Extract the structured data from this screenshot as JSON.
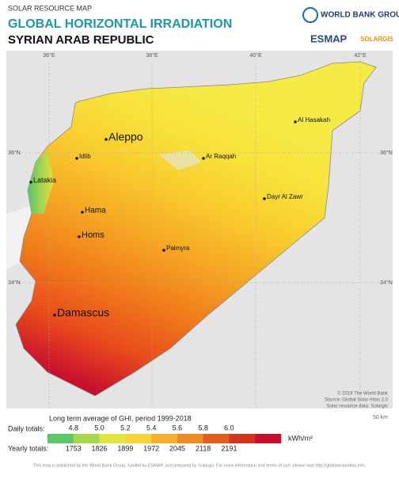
{
  "header": {
    "subtitle": "SOLAR RESOURCE MAP",
    "title": "GLOBAL HORIZONTAL IRRADIATION",
    "country": "SYRIAN ARAB REPUBLIC"
  },
  "logos": {
    "world_bank": "WORLD BANK GROUP",
    "esmap": "ESMAP",
    "solargis": "SOLARGIS"
  },
  "map": {
    "longitudes": [
      "36°E",
      "38°E",
      "40°E",
      "42°E"
    ],
    "latitudes": [
      "36°N",
      "34°N"
    ],
    "cities": [
      "Aleppo",
      "Idlib",
      "Latakia",
      "Hama",
      "Homs",
      "Palmyra",
      "Damascus",
      "Ar Raqqah",
      "Dayr Al Zawr",
      "Al Hasakah"
    ],
    "credits": [
      "© 2019 The World Bank",
      "Source: Global Solar Atlas 2.0",
      "Solar resource data: Solargis"
    ],
    "scale": "50 km"
  },
  "legend": {
    "title": "Long term average of GHI, period 1999-2018",
    "daily_label": "Daily totals:",
    "daily": [
      "4.8",
      "5.0",
      "5.2",
      "5.4",
      "5.6",
      "5.8",
      "6.0"
    ],
    "yearly_label": "Yearly totals:",
    "yearly": [
      "1753",
      "1826",
      "1899",
      "1972",
      "2045",
      "2118",
      "2191"
    ],
    "unit": "kWh/m²"
  },
  "footer": "This map is published by the World Bank Group, funded by ESMAP, and prepared by Solargis. For more information and terms of use, please visit http://globalsolaratlas.info."
}
